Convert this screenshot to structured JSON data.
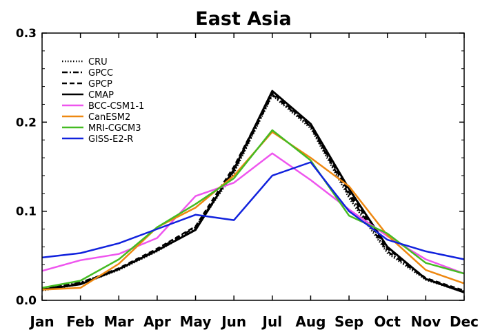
{
  "chart_data": {
    "type": "line",
    "title": "East Asia",
    "xlabel": "",
    "ylabel": "",
    "ylim": [
      0,
      0.3
    ],
    "yticks": [
      0.0,
      0.1,
      0.2,
      0.3
    ],
    "ytick_labels": [
      "0.0",
      "0.1",
      "0.2",
      "0.3"
    ],
    "categories": [
      "Jan",
      "Feb",
      "Mar",
      "Apr",
      "May",
      "Jun",
      "Jul",
      "Aug",
      "Sep",
      "Oct",
      "Nov",
      "Dec"
    ],
    "grid": false,
    "legend_position": "top-left",
    "series": [
      {
        "name": "CRU",
        "color": "#000000",
        "dash": "dotted",
        "values": [
          0.011,
          0.018,
          0.034,
          0.055,
          0.08,
          0.143,
          0.23,
          0.193,
          0.115,
          0.053,
          0.023,
          0.009
        ]
      },
      {
        "name": "GPCC",
        "color": "#000000",
        "dash": "dashdot",
        "values": [
          0.012,
          0.02,
          0.035,
          0.057,
          0.082,
          0.145,
          0.231,
          0.195,
          0.118,
          0.055,
          0.024,
          0.01
        ]
      },
      {
        "name": "GPCP",
        "color": "#000000",
        "dash": "dashed",
        "values": [
          0.013,
          0.019,
          0.036,
          0.058,
          0.083,
          0.15,
          0.233,
          0.196,
          0.121,
          0.058,
          0.025,
          0.011
        ]
      },
      {
        "name": "CMAP",
        "color": "#000000",
        "dash": "solid",
        "values": [
          0.012,
          0.018,
          0.035,
          0.056,
          0.079,
          0.147,
          0.235,
          0.198,
          0.125,
          0.06,
          0.024,
          0.009
        ]
      },
      {
        "name": "BCC-CSM1-1",
        "color": "#ee55ee",
        "dash": "solid",
        "values": [
          0.033,
          0.045,
          0.052,
          0.07,
          0.117,
          0.132,
          0.165,
          0.135,
          0.102,
          0.072,
          0.046,
          0.03
        ]
      },
      {
        "name": "CanESM2",
        "color": "#ee8811",
        "dash": "solid",
        "values": [
          0.012,
          0.014,
          0.041,
          0.082,
          0.104,
          0.14,
          0.189,
          0.16,
          0.128,
          0.073,
          0.034,
          0.019
        ]
      },
      {
        "name": "MRI-CGCM3",
        "color": "#44bb22",
        "dash": "solid",
        "values": [
          0.014,
          0.022,
          0.046,
          0.082,
          0.108,
          0.137,
          0.191,
          0.157,
          0.095,
          0.075,
          0.042,
          0.03
        ]
      },
      {
        "name": "GISS-E2-R",
        "color": "#1122dd",
        "dash": "solid",
        "values": [
          0.048,
          0.053,
          0.064,
          0.08,
          0.096,
          0.09,
          0.14,
          0.155,
          0.1,
          0.068,
          0.055,
          0.046
        ]
      }
    ]
  }
}
